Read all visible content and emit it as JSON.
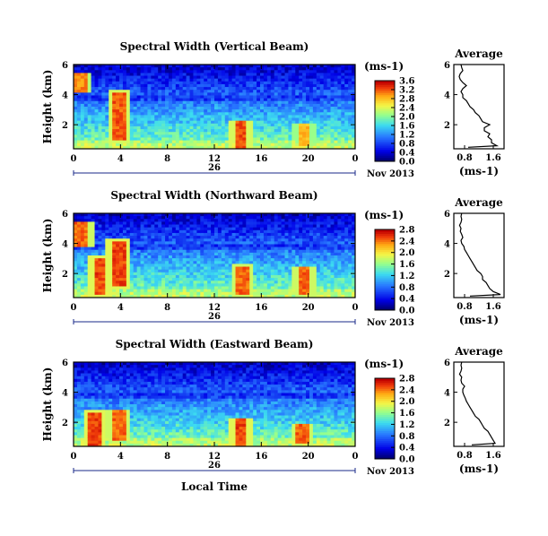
{
  "chart_data": [
    {
      "type": "heatmap",
      "title": "Spectral Width (Vertical Beam)",
      "ylabel": "Height (km)",
      "x_ticks": [
        "0",
        "4",
        "8",
        "12",
        "16",
        "20",
        "0"
      ],
      "y_ticks": [
        "2",
        "4",
        "6"
      ],
      "xlim": [
        0,
        24
      ],
      "ylim": [
        0.4,
        6
      ],
      "date_label": "26",
      "month_label": "Nov 2013",
      "colorbar": {
        "label": "(ms-1)",
        "ticks": [
          "0.0",
          "0.4",
          "0.8",
          "1.2",
          "1.6",
          "2.0",
          "2.4",
          "2.8",
          "3.2",
          "3.6"
        ],
        "range": [
          0,
          3.6
        ]
      },
      "profile": {
        "title": "Average",
        "xlabel": "(ms-1)",
        "x_ticks": [
          "0.8",
          "1.6"
        ],
        "y_ticks": [
          "2",
          "4",
          "6"
        ],
        "xlim": [
          0.5,
          1.9
        ],
        "ylim": [
          0.4,
          6
        ],
        "heights": [
          0.5,
          0.6,
          0.8,
          1.0,
          1.2,
          1.4,
          1.6,
          1.8,
          2.0,
          2.2,
          2.4,
          2.6,
          2.8,
          3.0,
          3.2,
          3.4,
          3.6,
          3.8,
          4.0,
          4.2,
          4.4,
          4.6,
          4.8,
          5.0,
          5.2,
          5.4,
          5.6,
          5.8,
          6.0
        ],
        "values": [
          0.9,
          1.7,
          1.55,
          1.55,
          1.45,
          1.5,
          1.35,
          1.35,
          1.5,
          1.3,
          1.25,
          1.2,
          1.1,
          1.05,
          0.95,
          0.9,
          0.85,
          0.75,
          0.75,
          0.7,
          0.75,
          0.85,
          0.75,
          0.68,
          0.65,
          0.68,
          0.75,
          0.72,
          0.7
        ]
      },
      "hotspots": [
        {
          "t": 0.6,
          "h": 4.8,
          "v": 3.2,
          "ht": 0.6
        },
        {
          "t": 3.9,
          "h": 2.5,
          "v": 3.4,
          "ht": 1.6
        },
        {
          "t": 14.3,
          "h": 1.3,
          "v": 3.4,
          "ht": 0.9
        },
        {
          "t": 19.6,
          "h": 1.3,
          "v": 3.0,
          "ht": 0.7
        }
      ]
    },
    {
      "type": "heatmap",
      "title": "Spectral Width (Northward Beam)",
      "ylabel": "Height (km)",
      "x_ticks": [
        "0",
        "4",
        "8",
        "12",
        "16",
        "20",
        "0"
      ],
      "y_ticks": [
        "2",
        "4",
        "6"
      ],
      "xlim": [
        0,
        24
      ],
      "ylim": [
        0.4,
        6
      ],
      "date_label": "26",
      "month_label": "Nov 2013",
      "colorbar": {
        "label": "(ms-1)",
        "ticks": [
          "0.0",
          "0.4",
          "0.8",
          "1.2",
          "1.6",
          "2.0",
          "2.4",
          "2.8"
        ],
        "range": [
          0,
          2.8
        ]
      },
      "profile": {
        "title": "Average",
        "xlabel": "(ms-1)",
        "x_ticks": [
          "0.8",
          "1.6"
        ],
        "y_ticks": [
          "2",
          "4",
          "6"
        ],
        "xlim": [
          0.5,
          1.9
        ],
        "ylim": [
          0.4,
          6
        ],
        "heights": [
          0.5,
          0.6,
          0.8,
          1.0,
          1.2,
          1.4,
          1.6,
          1.8,
          2.0,
          2.2,
          2.4,
          2.6,
          2.8,
          3.0,
          3.2,
          3.4,
          3.6,
          3.8,
          4.0,
          4.2,
          4.4,
          4.6,
          4.8,
          5.0,
          5.2,
          5.4,
          5.6,
          5.8,
          6.0
        ],
        "values": [
          0.95,
          1.8,
          1.6,
          1.5,
          1.45,
          1.4,
          1.3,
          1.3,
          1.25,
          1.15,
          1.1,
          1.05,
          1.0,
          0.95,
          0.9,
          0.85,
          0.8,
          0.78,
          0.72,
          0.7,
          0.75,
          0.72,
          0.68,
          0.7,
          0.66,
          0.7,
          0.72,
          0.7,
          0.72
        ]
      },
      "hotspots": [
        {
          "t": 0.7,
          "h": 4.6,
          "v": 2.6,
          "ht": 0.8
        },
        {
          "t": 2.2,
          "h": 1.8,
          "v": 2.7,
          "ht": 1.2
        },
        {
          "t": 3.8,
          "h": 2.7,
          "v": 2.7,
          "ht": 1.5
        },
        {
          "t": 14.4,
          "h": 1.5,
          "v": 2.6,
          "ht": 1.0
        },
        {
          "t": 19.7,
          "h": 1.5,
          "v": 2.6,
          "ht": 0.9
        }
      ]
    },
    {
      "type": "heatmap",
      "title": "Spectral Width (Eastward Beam)",
      "ylabel": "Height (km)",
      "x_ticks": [
        "0",
        "4",
        "8",
        "12",
        "16",
        "20",
        "0"
      ],
      "y_ticks": [
        "2",
        "4",
        "6"
      ],
      "xlim": [
        0,
        24
      ],
      "ylim": [
        0.4,
        6
      ],
      "date_label": "26",
      "month_label": "Nov 2013",
      "xlabel": "Local Time",
      "colorbar": {
        "label": "(ms-1)",
        "ticks": [
          "0.0",
          "0.4",
          "0.8",
          "1.2",
          "1.6",
          "2.0",
          "2.4",
          "2.8"
        ],
        "range": [
          0,
          2.8
        ]
      },
      "profile": {
        "title": "Average",
        "xlabel": "(ms-1)",
        "x_ticks": [
          "0.8",
          "1.6"
        ],
        "y_ticks": [
          "2",
          "4",
          "6"
        ],
        "xlim": [
          0.5,
          1.9
        ],
        "ylim": [
          0.4,
          6
        ],
        "heights": [
          0.5,
          0.6,
          0.8,
          1.0,
          1.2,
          1.4,
          1.6,
          1.8,
          2.0,
          2.2,
          2.4,
          2.6,
          2.8,
          3.0,
          3.2,
          3.4,
          3.6,
          3.8,
          4.0,
          4.2,
          4.4,
          4.6,
          4.8,
          5.0,
          5.2,
          5.4,
          5.6,
          5.8,
          6.0
        ],
        "values": [
          1.0,
          1.65,
          1.6,
          1.55,
          1.5,
          1.45,
          1.35,
          1.3,
          1.25,
          1.2,
          1.1,
          1.05,
          1.0,
          0.95,
          0.9,
          0.85,
          0.82,
          0.78,
          0.75,
          0.75,
          0.8,
          0.72,
          0.7,
          0.72,
          0.66,
          0.7,
          0.72,
          0.7,
          0.72
        ]
      },
      "hotspots": [
        {
          "t": 1.8,
          "h": 1.5,
          "v": 2.7,
          "ht": 1.2
        },
        {
          "t": 3.8,
          "h": 1.8,
          "v": 2.6,
          "ht": 1.0
        },
        {
          "t": 14.3,
          "h": 1.3,
          "v": 2.7,
          "ht": 0.9
        },
        {
          "t": 19.5,
          "h": 1.2,
          "v": 2.6,
          "ht": 0.7
        }
      ]
    }
  ]
}
